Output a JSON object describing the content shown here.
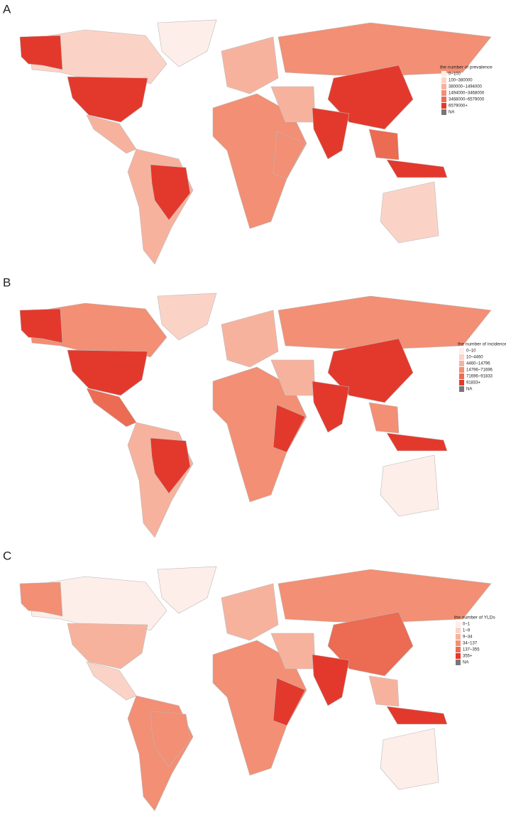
{
  "panels": [
    {
      "label": "A",
      "legend": {
        "title": "the number of prevalence",
        "items": [
          {
            "label": "0~100",
            "color": "#fdeee9"
          },
          {
            "label": "100~380000",
            "color": "#fbd3c6"
          },
          {
            "label": "380000~1494000",
            "color": "#f7b29e"
          },
          {
            "label": "1494000~3468000",
            "color": "#f28f74"
          },
          {
            "label": "3468000~6579000",
            "color": "#ec6b53"
          },
          {
            "label": "6579000+",
            "color": "#e3392c"
          },
          {
            "label": "NA",
            "color": "#777777"
          }
        ]
      }
    },
    {
      "label": "B",
      "legend": {
        "title": "the number of incidence",
        "items": [
          {
            "label": "0~10",
            "color": "#fdeee9"
          },
          {
            "label": "10~4460",
            "color": "#fbd3c6"
          },
          {
            "label": "4460~14796",
            "color": "#f7b29e"
          },
          {
            "label": "14796~71696",
            "color": "#f28f74"
          },
          {
            "label": "71696~91833",
            "color": "#ec6b53"
          },
          {
            "label": "91833+",
            "color": "#e3392c"
          },
          {
            "label": "NA",
            "color": "#777777"
          }
        ]
      }
    },
    {
      "label": "C",
      "legend": {
        "title": "the number of YLDs",
        "items": [
          {
            "label": "0~1",
            "color": "#fdeee9"
          },
          {
            "label": "1~9",
            "color": "#fbd3c6"
          },
          {
            "label": "9~34",
            "color": "#f7b29e"
          },
          {
            "label": "34~137",
            "color": "#f28f74"
          },
          {
            "label": "137~355",
            "color": "#ec6b53"
          },
          {
            "label": "355+",
            "color": "#e3392c"
          },
          {
            "label": "NA",
            "color": "#777777"
          }
        ]
      }
    }
  ]
}
